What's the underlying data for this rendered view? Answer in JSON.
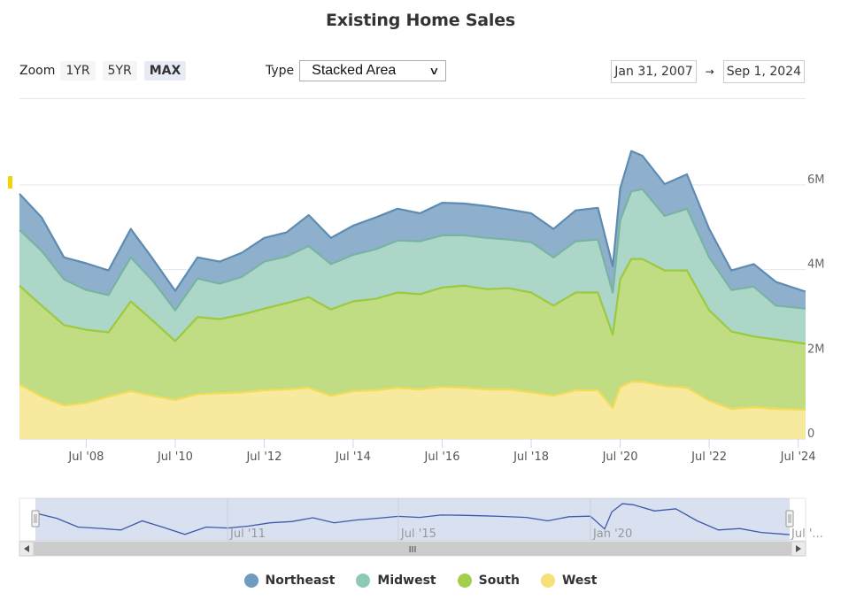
{
  "title": "Existing Home Sales",
  "controls": {
    "zoom_label": "Zoom",
    "zoom_buttons": [
      {
        "label": "1YR",
        "active": false
      },
      {
        "label": "5YR",
        "active": false
      },
      {
        "label": "MAX",
        "active": true
      }
    ],
    "type_label": "Type",
    "type_selected": "Stacked Area",
    "range_from": "Jan 31, 2007",
    "range_arrow": "→",
    "range_to": "Sep 1, 2024"
  },
  "navigator": {
    "tick_labels": [
      "Jul '11",
      "Jul '15",
      "Jan '20",
      "Jul '..."
    ],
    "scrollbar_grip": "III"
  },
  "colors": {
    "Northeast": "#6f9cc0",
    "Midwest": "#8ec8b6",
    "South": "#a3cf4e",
    "West": "#f5e07a"
  },
  "chart_data": {
    "type": "area",
    "stacked": true,
    "title": "Existing Home Sales",
    "xlabel": "",
    "ylabel": "",
    "x_range": [
      "2007-01",
      "2024-09"
    ],
    "ylim": [
      0,
      7000000
    ],
    "y_ticks": [
      0,
      2000000,
      4000000,
      6000000
    ],
    "y_tick_labels": [
      "0",
      "2M",
      "4M",
      "6M"
    ],
    "x_tick_labels": [
      "Jul '08",
      "Jul '10",
      "Jul '12",
      "Jul '14",
      "Jul '16",
      "Jul '18",
      "Jul '20",
      "Jul '22",
      "Jul '24"
    ],
    "x_tick_dates": [
      "2008-07",
      "2010-07",
      "2012-07",
      "2014-07",
      "2016-07",
      "2018-07",
      "2020-07",
      "2022-07",
      "2024-07"
    ],
    "grid": true,
    "legend_position": "bottom-center",
    "x": [
      "2007-01",
      "2007-07",
      "2008-01",
      "2008-07",
      "2009-01",
      "2009-07",
      "2010-01",
      "2010-07",
      "2011-01",
      "2011-07",
      "2012-01",
      "2012-07",
      "2013-01",
      "2013-07",
      "2014-01",
      "2014-07",
      "2015-01",
      "2015-07",
      "2016-01",
      "2016-07",
      "2017-01",
      "2017-07",
      "2018-01",
      "2018-07",
      "2019-01",
      "2019-07",
      "2020-01",
      "2020-05",
      "2020-07",
      "2020-10",
      "2021-01",
      "2021-07",
      "2022-01",
      "2022-07",
      "2023-01",
      "2023-07",
      "2024-01",
      "2024-09"
    ],
    "series": [
      {
        "name": "West",
        "values": [
          1290000,
          1000000,
          790000,
          850000,
          1000000,
          1130000,
          1020000,
          920000,
          1060000,
          1080000,
          1100000,
          1150000,
          1170000,
          1210000,
          1020000,
          1130000,
          1150000,
          1210000,
          1170000,
          1230000,
          1210000,
          1170000,
          1170000,
          1100000,
          1020000,
          1150000,
          1150000,
          730000,
          1230000,
          1350000,
          1350000,
          1250000,
          1210000,
          900000,
          710000,
          750000,
          710000,
          690000
        ]
      },
      {
        "name": "South",
        "values": [
          2330000,
          2150000,
          1900000,
          1730000,
          1520000,
          2120000,
          1770000,
          1390000,
          1820000,
          1750000,
          1840000,
          1930000,
          2040000,
          2140000,
          2040000,
          2120000,
          2160000,
          2250000,
          2250000,
          2350000,
          2410000,
          2370000,
          2390000,
          2360000,
          2130000,
          2310000,
          2310000,
          1730000,
          2540000,
          2900000,
          2900000,
          2730000,
          2770000,
          2140000,
          1830000,
          1670000,
          1640000,
          1560000
        ]
      },
      {
        "name": "Midwest",
        "values": [
          1320000,
          1290000,
          1080000,
          940000,
          880000,
          1040000,
          940000,
          730000,
          910000,
          840000,
          890000,
          1110000,
          1100000,
          1210000,
          1070000,
          1100000,
          1170000,
          1230000,
          1250000,
          1230000,
          1190000,
          1210000,
          1150000,
          1190000,
          1140000,
          1210000,
          1250000,
          1000000,
          1400000,
          1600000,
          1650000,
          1290000,
          1460000,
          1250000,
          980000,
          1180000,
          800000,
          830000
        ]
      },
      {
        "name": "Northeast",
        "values": [
          850000,
          790000,
          520000,
          630000,
          580000,
          670000,
          520000,
          460000,
          500000,
          520000,
          570000,
          560000,
          570000,
          730000,
          620000,
          690000,
          750000,
          750000,
          660000,
          770000,
          750000,
          750000,
          710000,
          680000,
          670000,
          730000,
          750000,
          620000,
          750000,
          950000,
          790000,
          750000,
          810000,
          670000,
          460000,
          530000,
          560000,
          400000
        ]
      }
    ]
  },
  "legend": [
    {
      "label": "Northeast"
    },
    {
      "label": "Midwest"
    },
    {
      "label": "South"
    },
    {
      "label": "West"
    }
  ]
}
